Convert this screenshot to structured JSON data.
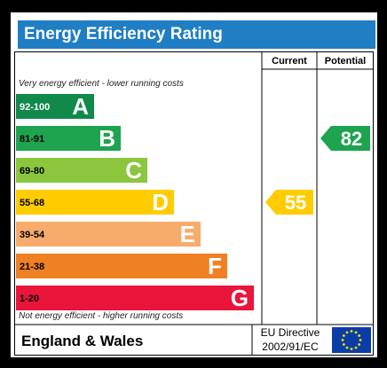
{
  "header": {
    "title": "Energy Efficiency Rating"
  },
  "columns": {
    "current": "Current",
    "potential": "Potential"
  },
  "top_note": "Very energy efficient - lower running costs",
  "bottom_note": "Not energy efficient - higher running costs",
  "footer": {
    "region": "England & Wales",
    "directive_line1": "EU Directive",
    "directive_line2": "2002/91/EC",
    "flag": "eu-flag-icon"
  },
  "chart_data": {
    "type": "bar",
    "bands": [
      {
        "range": "92-100",
        "letter": "A",
        "color": "#0f8a4b"
      },
      {
        "range": "81-91",
        "letter": "B",
        "color": "#1ea34f"
      },
      {
        "range": "69-80",
        "letter": "C",
        "color": "#8cc63f"
      },
      {
        "range": "55-68",
        "letter": "D",
        "color": "#ffcc00"
      },
      {
        "range": "39-54",
        "letter": "E",
        "color": "#f7ac6b"
      },
      {
        "range": "21-38",
        "letter": "F",
        "color": "#ef8023"
      },
      {
        "range": "1-20",
        "letter": "G",
        "color": "#e9153b"
      }
    ],
    "current": {
      "value": 55,
      "band": "D",
      "color": "#ffcc00"
    },
    "potential": {
      "value": 82,
      "band": "B",
      "color": "#1ea34f"
    }
  }
}
